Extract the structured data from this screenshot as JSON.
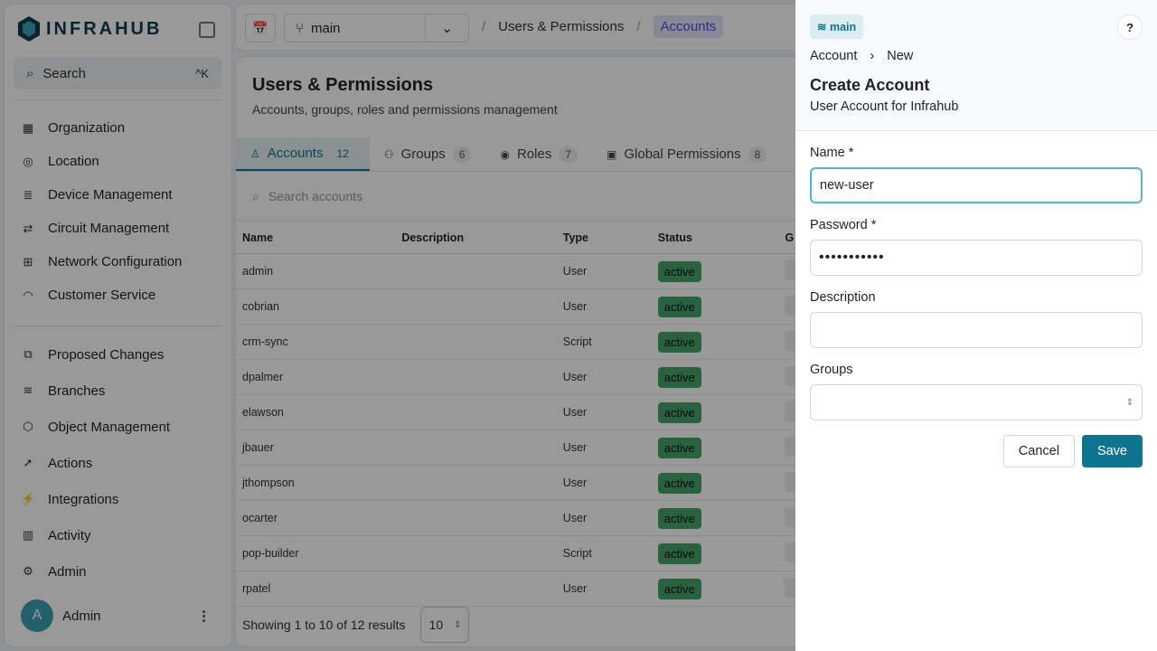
{
  "sidebar": {
    "logo": "INFRAHUB",
    "search": "Search",
    "search_shortcut": "^K",
    "top_items": [
      {
        "label": "Organization",
        "icon": "building-icon"
      },
      {
        "label": "Location",
        "icon": "pin-icon"
      },
      {
        "label": "Device Management",
        "icon": "server-icon"
      },
      {
        "label": "Circuit Management",
        "icon": "circuit-icon"
      },
      {
        "label": "Network Configuration",
        "icon": "network-icon"
      },
      {
        "label": "Customer Service",
        "icon": "gauge-icon"
      }
    ],
    "bottom_items": [
      {
        "label": "Proposed Changes",
        "icon": "diff-icon"
      },
      {
        "label": "Branches",
        "icon": "layers-icon"
      },
      {
        "label": "Object Management",
        "icon": "cube-icon"
      },
      {
        "label": "Actions",
        "icon": "rocket-icon"
      },
      {
        "label": "Integrations",
        "icon": "plug-icon"
      },
      {
        "label": "Activity",
        "icon": "chart-icon"
      },
      {
        "label": "Admin",
        "icon": "gear-icon"
      }
    ],
    "user": {
      "initial": "A",
      "name": "Admin"
    }
  },
  "topbar": {
    "branch": "main",
    "breadcrumb": [
      "Users & Permissions",
      "Accounts"
    ]
  },
  "page": {
    "title": "Users & Permissions",
    "subtitle": "Accounts, groups, roles and permissions management",
    "tabs": [
      {
        "label": "Accounts",
        "count": "12"
      },
      {
        "label": "Groups",
        "count": "6"
      },
      {
        "label": "Roles",
        "count": "7"
      },
      {
        "label": "Global Permissions",
        "count": "8"
      }
    ],
    "search_placeholder": "Search accounts",
    "columns": [
      "Name",
      "Description",
      "Type",
      "Status",
      "G"
    ],
    "rows": [
      [
        "admin",
        "",
        "User",
        "active"
      ],
      [
        "cobrian",
        "",
        "User",
        "active"
      ],
      [
        "crm-sync",
        "",
        "Script",
        "active"
      ],
      [
        "dpalmer",
        "",
        "User",
        "active"
      ],
      [
        "elawson",
        "",
        "User",
        "active"
      ],
      [
        "jbauer",
        "",
        "User",
        "active"
      ],
      [
        "jthompson",
        "",
        "User",
        "active"
      ],
      [
        "ocarter",
        "",
        "User",
        "active"
      ],
      [
        "pop-builder",
        "",
        "Script",
        "active"
      ],
      [
        "rpatel",
        "",
        "User",
        "active"
      ]
    ],
    "pagination": {
      "summary": "Showing 1 to 10 of 12 results",
      "page_size": "10"
    }
  },
  "drawer": {
    "branch": "main",
    "help": "?",
    "breadcrumb": [
      "Account",
      "New"
    ],
    "title": "Create Account",
    "subtitle": "User Account for Infrahub",
    "fields": {
      "name_label": "Name *",
      "name_value": "new-user",
      "password_label": "Password *",
      "password_value": "•••••••••••",
      "description_label": "Description",
      "description_value": "",
      "groups_label": "Groups",
      "groups_value": ""
    },
    "cancel": "Cancel",
    "save": "Save"
  },
  "colors": {
    "accent": "#0e7490",
    "active_badge": "#47a46a"
  }
}
